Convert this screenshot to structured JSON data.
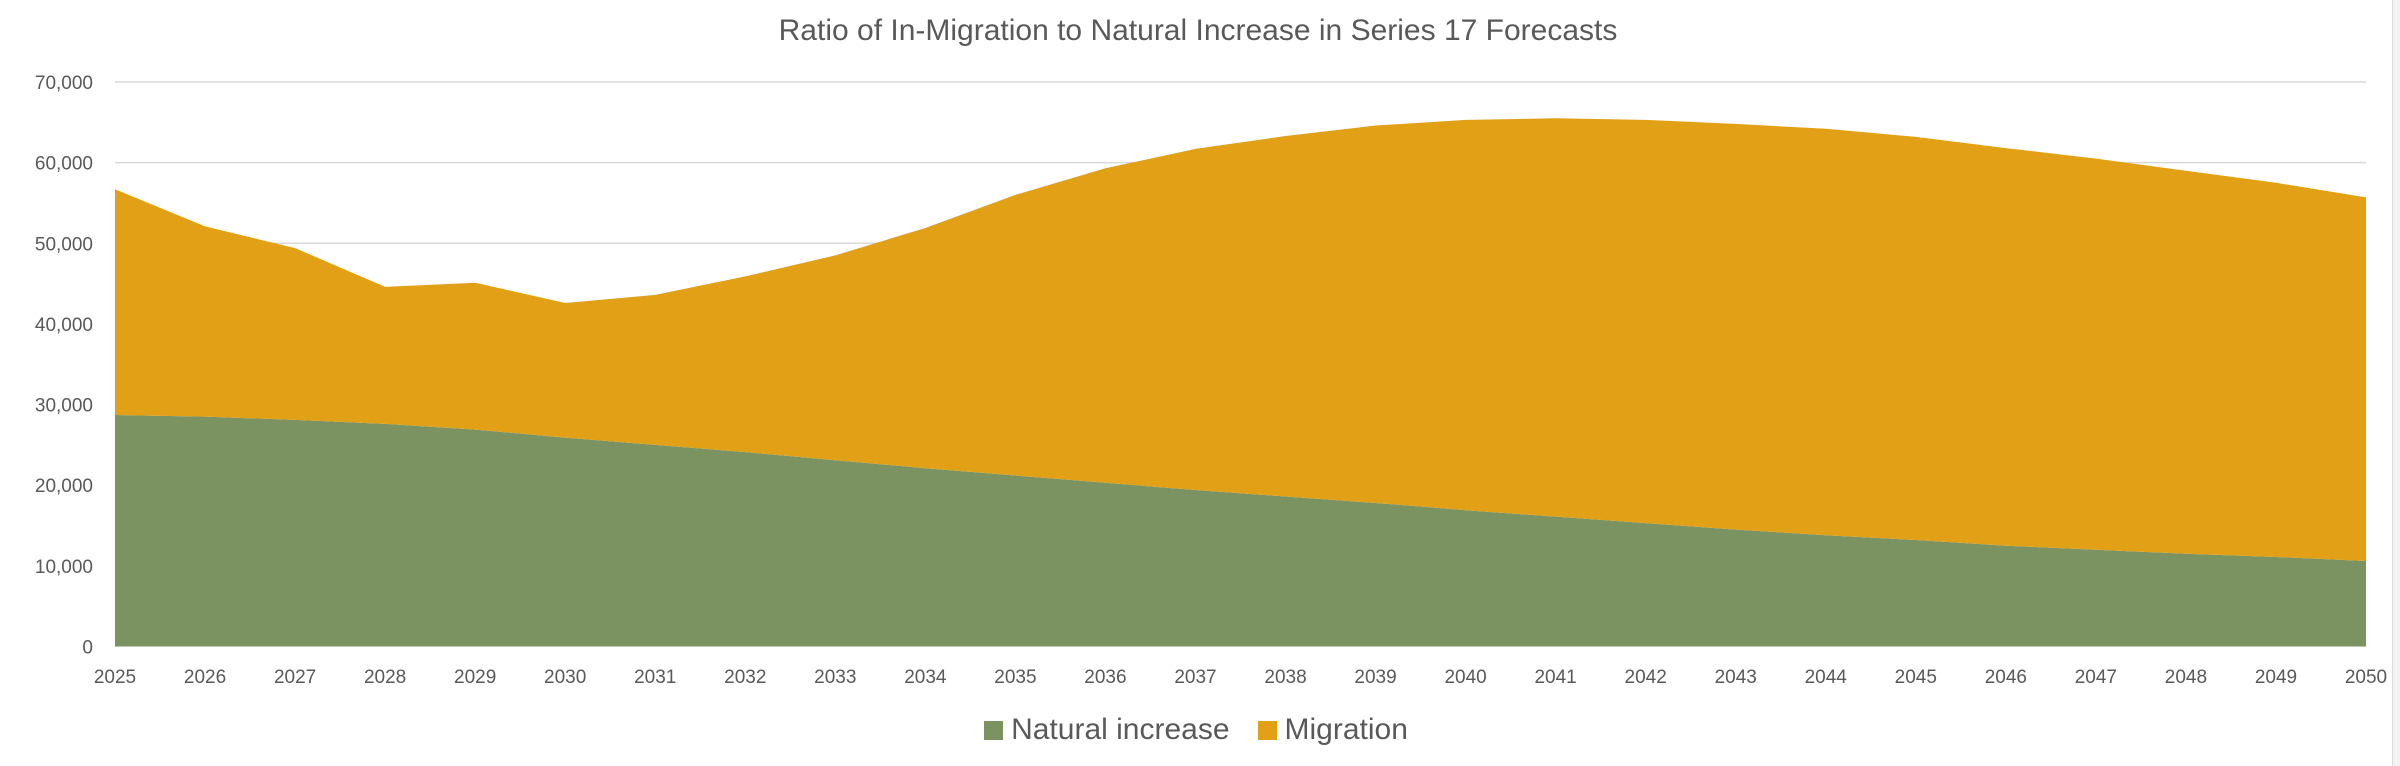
{
  "chart_data": {
    "type": "area",
    "stacked": true,
    "title": "Ratio of In-Migration to Natural Increase in Series 17 Forecasts",
    "xlabel": "",
    "ylabel": "",
    "categories": [
      "2025",
      "2026",
      "2027",
      "2028",
      "2029",
      "2030",
      "2031",
      "2032",
      "2033",
      "2034",
      "2035",
      "2036",
      "2037",
      "2038",
      "2039",
      "2040",
      "2041",
      "2042",
      "2043",
      "2044",
      "2045",
      "2046",
      "2047",
      "2048",
      "2049",
      "2050"
    ],
    "series": [
      {
        "name": "Natural increase",
        "color": "#7a9361",
        "values": [
          28700,
          28500,
          28100,
          27600,
          26900,
          25900,
          25000,
          24100,
          23100,
          22100,
          21200,
          20300,
          19400,
          18600,
          17800,
          16900,
          16100,
          15300,
          14500,
          13800,
          13200,
          12500,
          12000,
          11500,
          11100,
          10600
        ]
      },
      {
        "name": "Migration",
        "color": "#e2a017",
        "values": [
          28000,
          23600,
          21300,
          17000,
          18200,
          16700,
          18600,
          21800,
          25400,
          29800,
          34800,
          39000,
          42300,
          44700,
          46800,
          48400,
          49400,
          50000,
          50300,
          50400,
          50000,
          49300,
          48500,
          47500,
          46400,
          45100
        ]
      }
    ],
    "ylim": [
      0,
      70000
    ],
    "yticks": [
      0,
      10000,
      20000,
      30000,
      40000,
      50000,
      60000,
      70000
    ],
    "ytick_labels": [
      "0",
      "10,000",
      "20,000",
      "30,000",
      "40,000",
      "50,000",
      "60,000",
      "70,000"
    ],
    "grid": true,
    "legend_position": "bottom"
  }
}
